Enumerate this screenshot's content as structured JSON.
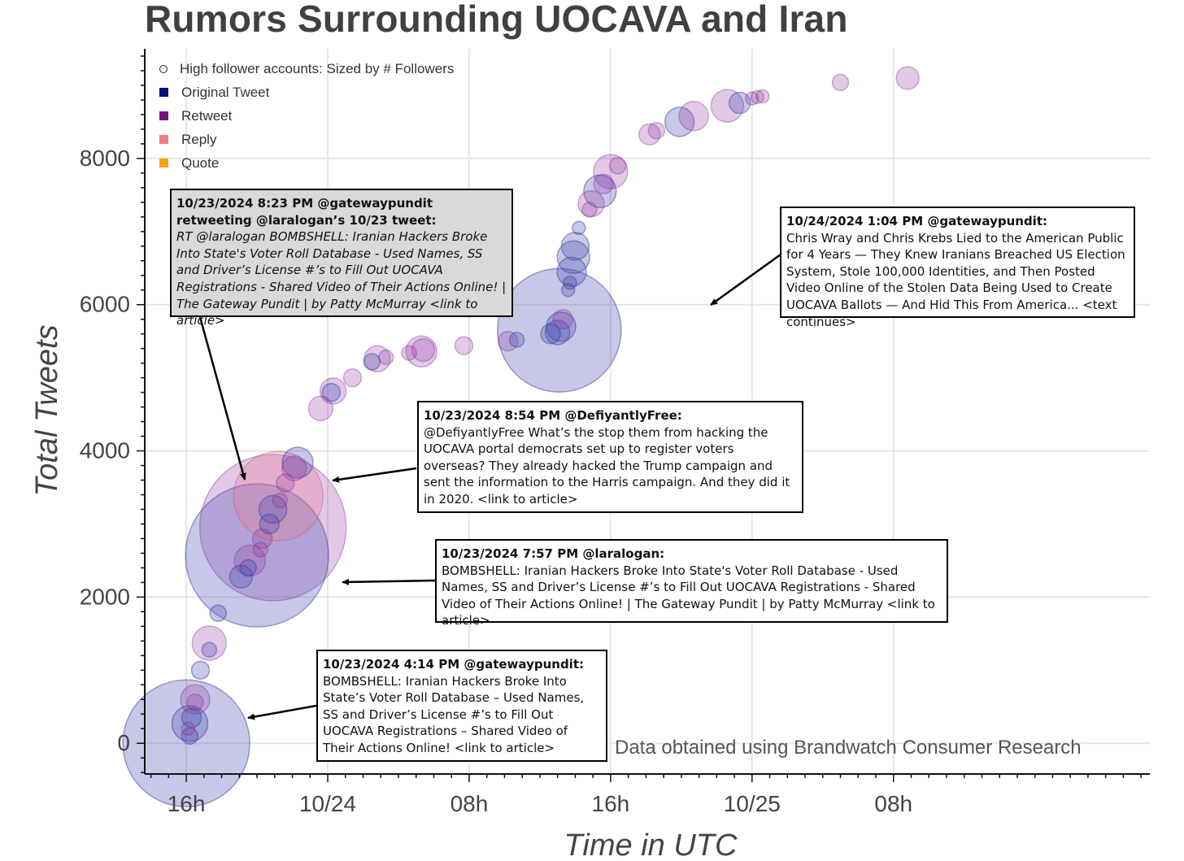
{
  "title": "Rumors Surrounding UOCAVA and Iran",
  "source_note": "Data obtained using Brandwatch Consumer Research",
  "legend": {
    "size_label": "High follower accounts: Sized by # Followers",
    "items": [
      {
        "label": "Original Tweet",
        "color": "#0b0b7a"
      },
      {
        "label": "Retweet",
        "color": "#7b1085"
      },
      {
        "label": "Reply",
        "color": "#f08080"
      },
      {
        "label": "Quote",
        "color": "#f5a30a"
      }
    ]
  },
  "callouts": [
    {
      "id": "gp-retweet",
      "style": "grey",
      "head": "10/23/2024  8:23 PM @gatewaypundit retweeting @laralogan’s 10/23 tweet:",
      "body": "RT @laralogan BOMBSHELL: Iranian Hackers Broke Into State's Voter Roll Database - Used Names, SS and Driver’s License #’s to Fill Out UOCAVA Registrations - Shared Video of Their Actions Online! | The Gateway Pundit | by Patty McMurray <link to article>"
    },
    {
      "id": "defiantlyfree",
      "style": "white",
      "head": "10/23/2024  8:54 PM @DefiyantlyFree:",
      "body": "@DefiyantlyFree What’s the stop them from hacking the UOCAVA portal democrats set up to register voters overseas? They already hacked the Trump campaign and sent the information to the Harris campaign. And they did it in 2020. <link to article>"
    },
    {
      "id": "laralogan",
      "style": "white",
      "head": "10/23/2024  7:57 PM @laralogan:",
      "body": "BOMBSHELL: Iranian Hackers Broke Into State's Voter Roll Database - Used Names, SS and Driver’s License #’s to Fill Out UOCAVA Registrations - Shared Video of Their Actions Online! | The Gateway Pundit | by Patty McMurray <link to article>"
    },
    {
      "id": "gp-original",
      "style": "white",
      "head": "10/23/2024  4:14 PM @gatewaypundit:",
      "body": "BOMBSHELL: Iranian Hackers Broke Into State’s Voter Roll Database – Used Names, SS and Driver’s License #’s to Fill Out UOCAVA Registrations – Shared Video of Their Actions Online! <link to article>"
    },
    {
      "id": "gp-1024",
      "style": "white",
      "head": "10/24/2024  1:04 PM @gatewaypundit:",
      "body": "Chris Wray and Chris Krebs Lied to the American Public for 4 Years — They Knew Iranians Breached US Election System, Stole 100,000 Identities, and Then Posted Video Online of the Stolen Data Being Used to Create UOCAVA Ballots — And Hid This From America... <text continues>"
    }
  ],
  "chart_data": {
    "type": "scatter",
    "title": "Rumors Surrounding UOCAVA and Iran",
    "xlabel": "Time in UTC",
    "ylabel": "Total Tweets",
    "x_unit": "hours since 10/23 00:00 UTC",
    "xlim": [
      13.65,
      70.5
    ],
    "ylim": [
      -420,
      9500
    ],
    "x_ticks": [
      {
        "value": 16,
        "label": "16h"
      },
      {
        "value": 24,
        "label": "10/24"
      },
      {
        "value": 32,
        "label": "08h"
      },
      {
        "value": 40,
        "label": "16h"
      },
      {
        "value": 48,
        "label": "10/25"
      },
      {
        "value": 56,
        "label": "08h"
      }
    ],
    "y_ticks": [
      0,
      2000,
      4000,
      6000,
      8000
    ],
    "grid": true,
    "legend_position": "top-left",
    "points": [
      {
        "x": 16.0,
        "y": 0,
        "type": "original",
        "r": 78
      },
      {
        "x": 16.2,
        "y": 270,
        "type": "original",
        "r": 22
      },
      {
        "x": 16.3,
        "y": 350,
        "type": "original",
        "r": 12
      },
      {
        "x": 16.5,
        "y": 600,
        "type": "retweet",
        "r": 18
      },
      {
        "x": 16.5,
        "y": 560,
        "type": "retweet",
        "r": 10
      },
      {
        "x": 16.2,
        "y": 100,
        "type": "original",
        "r": 10
      },
      {
        "x": 16.1,
        "y": 200,
        "type": "retweet",
        "r": 8
      },
      {
        "x": 16.8,
        "y": 1000,
        "type": "original",
        "r": 11
      },
      {
        "x": 17.3,
        "y": 1370,
        "type": "retweet",
        "r": 21
      },
      {
        "x": 17.3,
        "y": 1280,
        "type": "original",
        "r": 9
      },
      {
        "x": 17.8,
        "y": 1780,
        "type": "original",
        "r": 10
      },
      {
        "x": 20.0,
        "y": 2570,
        "type": "original",
        "r": 88
      },
      {
        "x": 20.9,
        "y": 2950,
        "type": "retweet",
        "r": 90
      },
      {
        "x": 21.2,
        "y": 3380,
        "type": "reply",
        "r": 55
      },
      {
        "x": 19.1,
        "y": 2280,
        "type": "original",
        "r": 14
      },
      {
        "x": 19.5,
        "y": 2400,
        "type": "original",
        "r": 10
      },
      {
        "x": 19.6,
        "y": 2500,
        "type": "retweet",
        "r": 19
      },
      {
        "x": 20.2,
        "y": 2650,
        "type": "retweet",
        "r": 9
      },
      {
        "x": 20.3,
        "y": 2800,
        "type": "retweet",
        "r": 12
      },
      {
        "x": 20.7,
        "y": 3000,
        "type": "original",
        "r": 12
      },
      {
        "x": 20.9,
        "y": 3200,
        "type": "original",
        "r": 17
      },
      {
        "x": 21.3,
        "y": 3320,
        "type": "retweet",
        "r": 9
      },
      {
        "x": 21.6,
        "y": 3560,
        "type": "retweet",
        "r": 11
      },
      {
        "x": 22.1,
        "y": 3760,
        "type": "retweet",
        "r": 15
      },
      {
        "x": 22.3,
        "y": 3840,
        "type": "original",
        "r": 19
      },
      {
        "x": 23.6,
        "y": 4580,
        "type": "retweet",
        "r": 15
      },
      {
        "x": 24.3,
        "y": 4820,
        "type": "retweet",
        "r": 16
      },
      {
        "x": 24.2,
        "y": 4800,
        "type": "original",
        "r": 11
      },
      {
        "x": 25.4,
        "y": 5000,
        "type": "retweet",
        "r": 11
      },
      {
        "x": 26.5,
        "y": 5220,
        "type": "original",
        "r": 10
      },
      {
        "x": 26.8,
        "y": 5260,
        "type": "retweet",
        "r": 16
      },
      {
        "x": 27.3,
        "y": 5280,
        "type": "retweet",
        "r": 9
      },
      {
        "x": 28.6,
        "y": 5340,
        "type": "retweet",
        "r": 9
      },
      {
        "x": 29.3,
        "y": 5360,
        "type": "retweet",
        "r": 19
      },
      {
        "x": 29.4,
        "y": 5380,
        "type": "retweet",
        "r": 14
      },
      {
        "x": 31.7,
        "y": 5440,
        "type": "retweet",
        "r": 11
      },
      {
        "x": 34.2,
        "y": 5500,
        "type": "retweet",
        "r": 12
      },
      {
        "x": 34.7,
        "y": 5520,
        "type": "original",
        "r": 9
      },
      {
        "x": 37.1,
        "y": 5650,
        "type": "original",
        "r": 76
      },
      {
        "x": 36.6,
        "y": 5600,
        "type": "original",
        "r": 12
      },
      {
        "x": 37.0,
        "y": 5620,
        "type": "original",
        "r": 15
      },
      {
        "x": 37.2,
        "y": 5700,
        "type": "original",
        "r": 18
      },
      {
        "x": 37.3,
        "y": 5800,
        "type": "retweet",
        "r": 12
      },
      {
        "x": 37.6,
        "y": 6200,
        "type": "original",
        "r": 8
      },
      {
        "x": 37.7,
        "y": 6300,
        "type": "original",
        "r": 8
      },
      {
        "x": 37.8,
        "y": 6450,
        "type": "original",
        "r": 18
      },
      {
        "x": 37.9,
        "y": 6650,
        "type": "original",
        "r": 20
      },
      {
        "x": 38.0,
        "y": 6800,
        "type": "original",
        "r": 17
      },
      {
        "x": 38.2,
        "y": 7050,
        "type": "original",
        "r": 8
      },
      {
        "x": 38.8,
        "y": 7300,
        "type": "retweet",
        "r": 9
      },
      {
        "x": 38.9,
        "y": 7380,
        "type": "retweet",
        "r": 16
      },
      {
        "x": 39.4,
        "y": 7550,
        "type": "original",
        "r": 20
      },
      {
        "x": 39.6,
        "y": 7650,
        "type": "retweet",
        "r": 12
      },
      {
        "x": 40.0,
        "y": 7820,
        "type": "retweet",
        "r": 21
      },
      {
        "x": 40.4,
        "y": 7900,
        "type": "retweet",
        "r": 10
      },
      {
        "x": 42.2,
        "y": 8330,
        "type": "retweet",
        "r": 13
      },
      {
        "x": 42.6,
        "y": 8380,
        "type": "retweet",
        "r": 10
      },
      {
        "x": 43.9,
        "y": 8500,
        "type": "original",
        "r": 18
      },
      {
        "x": 44.7,
        "y": 8580,
        "type": "retweet",
        "r": 18
      },
      {
        "x": 46.6,
        "y": 8720,
        "type": "retweet",
        "r": 20
      },
      {
        "x": 47.3,
        "y": 8760,
        "type": "original",
        "r": 13
      },
      {
        "x": 48.0,
        "y": 8820,
        "type": "retweet",
        "r": 8
      },
      {
        "x": 48.3,
        "y": 8840,
        "type": "retweet",
        "r": 8
      },
      {
        "x": 48.6,
        "y": 8850,
        "type": "retweet",
        "r": 8
      },
      {
        "x": 53.0,
        "y": 9040,
        "type": "retweet",
        "r": 10
      },
      {
        "x": 56.8,
        "y": 9100,
        "type": "retweet",
        "r": 14
      }
    ]
  }
}
